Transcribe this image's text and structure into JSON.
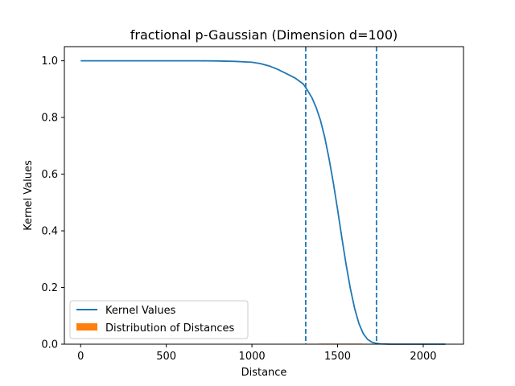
{
  "chart_data": {
    "type": "line",
    "title": "fractional p-Gaussian (Dimension d=100)",
    "xlabel": "Distance",
    "ylabel": "Kernel Values",
    "xlim": [
      -95,
      2235
    ],
    "ylim": [
      0,
      1.05
    ],
    "xticks": [
      0,
      500,
      1000,
      1500,
      2000
    ],
    "xtick_labels": [
      "0",
      "500",
      "1000",
      "1500",
      "2000"
    ],
    "yticks": [
      0.0,
      0.2,
      0.4,
      0.6,
      0.8,
      1.0
    ],
    "ytick_labels": [
      "0.0",
      "0.2",
      "0.4",
      "0.6",
      "0.8",
      "1.0"
    ],
    "grid": false,
    "legend_placement": "lower-left",
    "colors": {
      "kernel": "#1f77b4",
      "distances": "#ff7f0e",
      "vlines": "#1f77b4"
    },
    "series": [
      {
        "name": "Kernel Values",
        "kind": "line",
        "x": [
          0,
          100,
          200,
          300,
          400,
          500,
          600,
          700,
          800,
          900,
          1000,
          1050,
          1100,
          1150,
          1200,
          1250,
          1300,
          1320,
          1350,
          1375,
          1400,
          1425,
          1450,
          1475,
          1500,
          1525,
          1550,
          1575,
          1600,
          1625,
          1650,
          1675,
          1700,
          1725,
          1750,
          1800,
          1900,
          2000,
          2130
        ],
        "y": [
          1.0,
          1.0,
          1.0,
          1.0,
          1.0,
          1.0,
          1.0,
          1.0,
          0.9995,
          0.998,
          0.995,
          0.99,
          0.982,
          0.97,
          0.955,
          0.94,
          0.918,
          0.9,
          0.87,
          0.835,
          0.79,
          0.73,
          0.655,
          0.57,
          0.475,
          0.375,
          0.28,
          0.195,
          0.125,
          0.072,
          0.037,
          0.017,
          0.007,
          0.003,
          0.001,
          0.0002,
          0.0,
          0.0,
          0.0
        ]
      },
      {
        "name": "Distribution of Distances",
        "kind": "histogram",
        "bins": [
          [
            1390,
            1410,
            0.002
          ],
          [
            1410,
            1430,
            0.002
          ],
          [
            1430,
            1450,
            0.002
          ],
          [
            1450,
            1470,
            0.002
          ],
          [
            1470,
            1490,
            0.002
          ],
          [
            1490,
            1510,
            0.002
          ],
          [
            1510,
            1530,
            0.002
          ],
          [
            1530,
            1550,
            0.002
          ],
          [
            1550,
            1570,
            0.002
          ],
          [
            1570,
            1590,
            0.002
          ],
          [
            1590,
            1610,
            0.002
          ],
          [
            1610,
            1630,
            0.002
          ],
          [
            1630,
            1645,
            0.002
          ]
        ]
      }
    ],
    "vlines": [
      1314,
      1727
    ]
  }
}
